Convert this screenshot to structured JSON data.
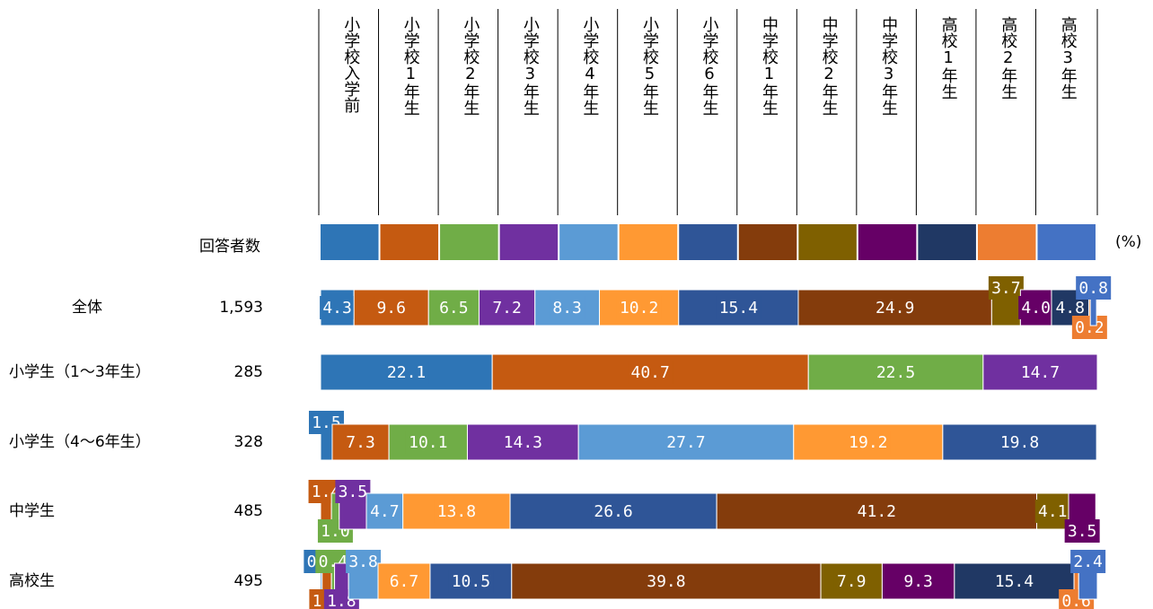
{
  "chart_data": {
    "type": "bar",
    "stacked": true,
    "orientation": "horizontal",
    "respondents_label": "回答者数",
    "unit_label": "(%)",
    "categories": [
      "全体",
      "小学生（1～3年生）",
      "小学生（4～6年生）",
      "中学生",
      "高校生"
    ],
    "n": [
      {
        "value": 1593,
        "label": "1,593"
      },
      285,
      328,
      485,
      495
    ],
    "xlim": [
      0,
      100
    ],
    "series": [
      {
        "name": "小学校入学前",
        "color": "#2e75b6",
        "values": [
          4.3,
          22.1,
          1.5,
          null,
          0.2
        ]
      },
      {
        "name": "小学校1年生",
        "color": "#c55a11",
        "values": [
          9.6,
          40.7,
          7.3,
          1.4,
          1.2
        ]
      },
      {
        "name": "小学校2年生",
        "color": "#70ad47",
        "values": [
          6.5,
          22.5,
          10.1,
          1.0,
          0.4
        ],
        "value_labels": [
          "6.5",
          "22.5",
          "10.1",
          "1.0",
          "0.4"
        ]
      },
      {
        "name": "小学校3年生",
        "color": "#7030a0",
        "values": [
          7.2,
          14.7,
          14.3,
          3.5,
          1.8
        ]
      },
      {
        "name": "小学校4年生",
        "color": "#5b9bd5",
        "values": [
          8.3,
          null,
          27.7,
          4.7,
          3.8
        ]
      },
      {
        "name": "小学校5年生",
        "color": "#ff9933",
        "values": [
          10.2,
          null,
          19.2,
          13.8,
          6.7
        ]
      },
      {
        "name": "小学校6年生",
        "color": "#2f5597",
        "values": [
          15.4,
          null,
          19.8,
          26.6,
          10.5
        ]
      },
      {
        "name": "中学校1年生",
        "color": "#843c0c",
        "values": [
          24.9,
          null,
          null,
          41.2,
          39.8
        ]
      },
      {
        "name": "中学校2年生",
        "color": "#7f6000",
        "values": [
          3.7,
          null,
          null,
          4.1,
          7.9
        ]
      },
      {
        "name": "中学校3年生",
        "color": "#660066",
        "values": [
          4.0,
          null,
          null,
          3.5,
          9.3
        ],
        "value_labels": [
          "4.0",
          null,
          null,
          "3.5",
          "9.3"
        ]
      },
      {
        "name": "高校1年生",
        "color": "#203864",
        "values": [
          4.8,
          null,
          null,
          null,
          15.4
        ]
      },
      {
        "name": "高校2年生",
        "color": "#ed7d31",
        "values": [
          0.2,
          null,
          null,
          null,
          0.6
        ]
      },
      {
        "name": "高校3年生",
        "color": "#4472c4",
        "values": [
          0.8,
          null,
          null,
          null,
          2.4
        ]
      }
    ]
  }
}
